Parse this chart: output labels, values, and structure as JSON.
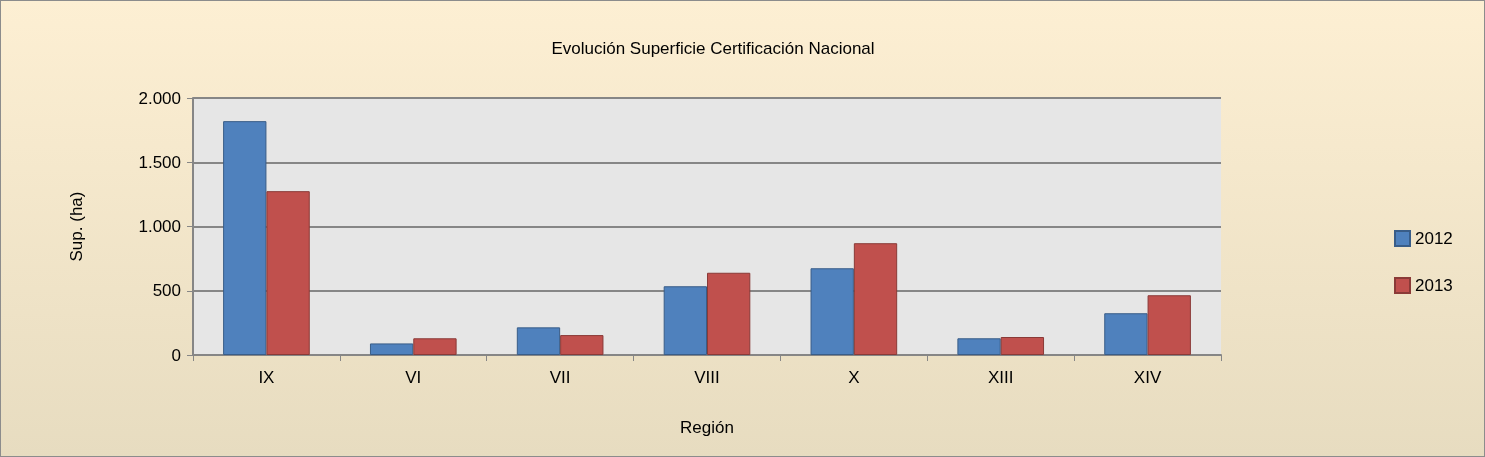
{
  "chart_data": {
    "type": "bar",
    "title": "Evolución Superficie Certificación Nacional",
    "xlabel": "Región",
    "ylabel": "Sup. (ha)",
    "categories": [
      "IX",
      "VI",
      "VII",
      "VIII",
      "X",
      "XIII",
      "XIV"
    ],
    "series": [
      {
        "name": "2012",
        "color": "#4f81bd",
        "values": [
          1820,
          90,
          215,
          535,
          675,
          130,
          325
        ]
      },
      {
        "name": "2013",
        "color": "#c0504d",
        "values": [
          1275,
          130,
          155,
          640,
          870,
          140,
          465
        ]
      }
    ],
    "ylim": [
      0,
      2000
    ],
    "yticks": [
      0,
      500,
      {
        "value": 1000,
        "label": "1.000"
      },
      {
        "value": 1500,
        "label": "1.500"
      },
      {
        "value": 2000,
        "label": "2.000"
      }
    ],
    "grid": "y",
    "legend": "right"
  }
}
